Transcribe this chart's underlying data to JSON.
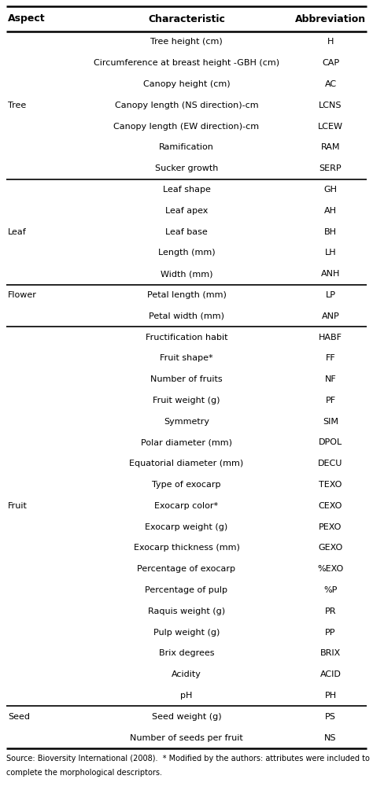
{
  "header": [
    "Aspect",
    "Characteristic",
    "Abbreviation"
  ],
  "rows": [
    [
      "",
      "Tree height (cm)",
      "H"
    ],
    [
      "",
      "Circumference at breast height -GBH (cm)",
      "CAP"
    ],
    [
      "",
      "Canopy height (cm)",
      "AC"
    ],
    [
      "",
      "Canopy length (NS direction)-cm",
      "LCNS"
    ],
    [
      "",
      "Canopy length (EW direction)-cm",
      "LCEW"
    ],
    [
      "",
      "Ramification",
      "RAM"
    ],
    [
      "",
      "Sucker growth",
      "SERP"
    ],
    [
      "",
      "Leaf shape",
      "GH"
    ],
    [
      "",
      "Leaf apex",
      "AH"
    ],
    [
      "",
      "Leaf base",
      "BH"
    ],
    [
      "",
      "Length (mm)",
      "LH"
    ],
    [
      "",
      "Width (mm)",
      "ANH"
    ],
    [
      "",
      "Petal length (mm)",
      "LP"
    ],
    [
      "",
      "Petal width (mm)",
      "ANP"
    ],
    [
      "",
      "Fructification habit",
      "HABF"
    ],
    [
      "",
      "Fruit shape*",
      "FF"
    ],
    [
      "",
      "Number of fruits",
      "NF"
    ],
    [
      "",
      "Fruit weight (g)",
      "PF"
    ],
    [
      "",
      "Symmetry",
      "SIM"
    ],
    [
      "",
      "Polar diameter (mm)",
      "DPOL"
    ],
    [
      "",
      "Equatorial diameter (mm)",
      "DECU"
    ],
    [
      "",
      "Type of exocarp",
      "TEXO"
    ],
    [
      "",
      "Exocarp color*",
      "CEXO"
    ],
    [
      "",
      "Exocarp weight (g)",
      "PEXO"
    ],
    [
      "",
      "Exocarp thickness (mm)",
      "GEXO"
    ],
    [
      "",
      "Percentage of exocarp",
      "%EXO"
    ],
    [
      "",
      "Percentage of pulp",
      "%P"
    ],
    [
      "",
      "Raquis weight (g)",
      "PR"
    ],
    [
      "",
      "Pulp weight (g)",
      "PP"
    ],
    [
      "",
      "Brix degrees",
      "BRIX"
    ],
    [
      "",
      "Acidity",
      "ACID"
    ],
    [
      "",
      "pH",
      "PH"
    ],
    [
      "",
      "Seed weight (g)",
      "PS"
    ],
    [
      "",
      "Number of seeds per fruit",
      "NS"
    ]
  ],
  "section_separators_after": [
    6,
    11,
    13,
    31
  ],
  "sections": [
    {
      "label": "Tree",
      "start": 0,
      "end": 6,
      "mid": 3
    },
    {
      "label": "Leaf",
      "start": 7,
      "end": 11,
      "mid": 9
    },
    {
      "label": "Flower",
      "start": 12,
      "end": 13,
      "mid": 12
    },
    {
      "label": "Fruit",
      "start": 14,
      "end": 31,
      "mid": 22
    },
    {
      "label": "Seed",
      "start": 32,
      "end": 33,
      "mid": 32
    }
  ],
  "footer": "Source: Bioversity International (2008).  * Modified by the authors: attributes were included to\ncomplete the morphological descriptors.",
  "bg_color": "#ffffff",
  "text_color": "#000000",
  "line_color": "#000000",
  "font_size": 8.0,
  "header_font_size": 9.0
}
